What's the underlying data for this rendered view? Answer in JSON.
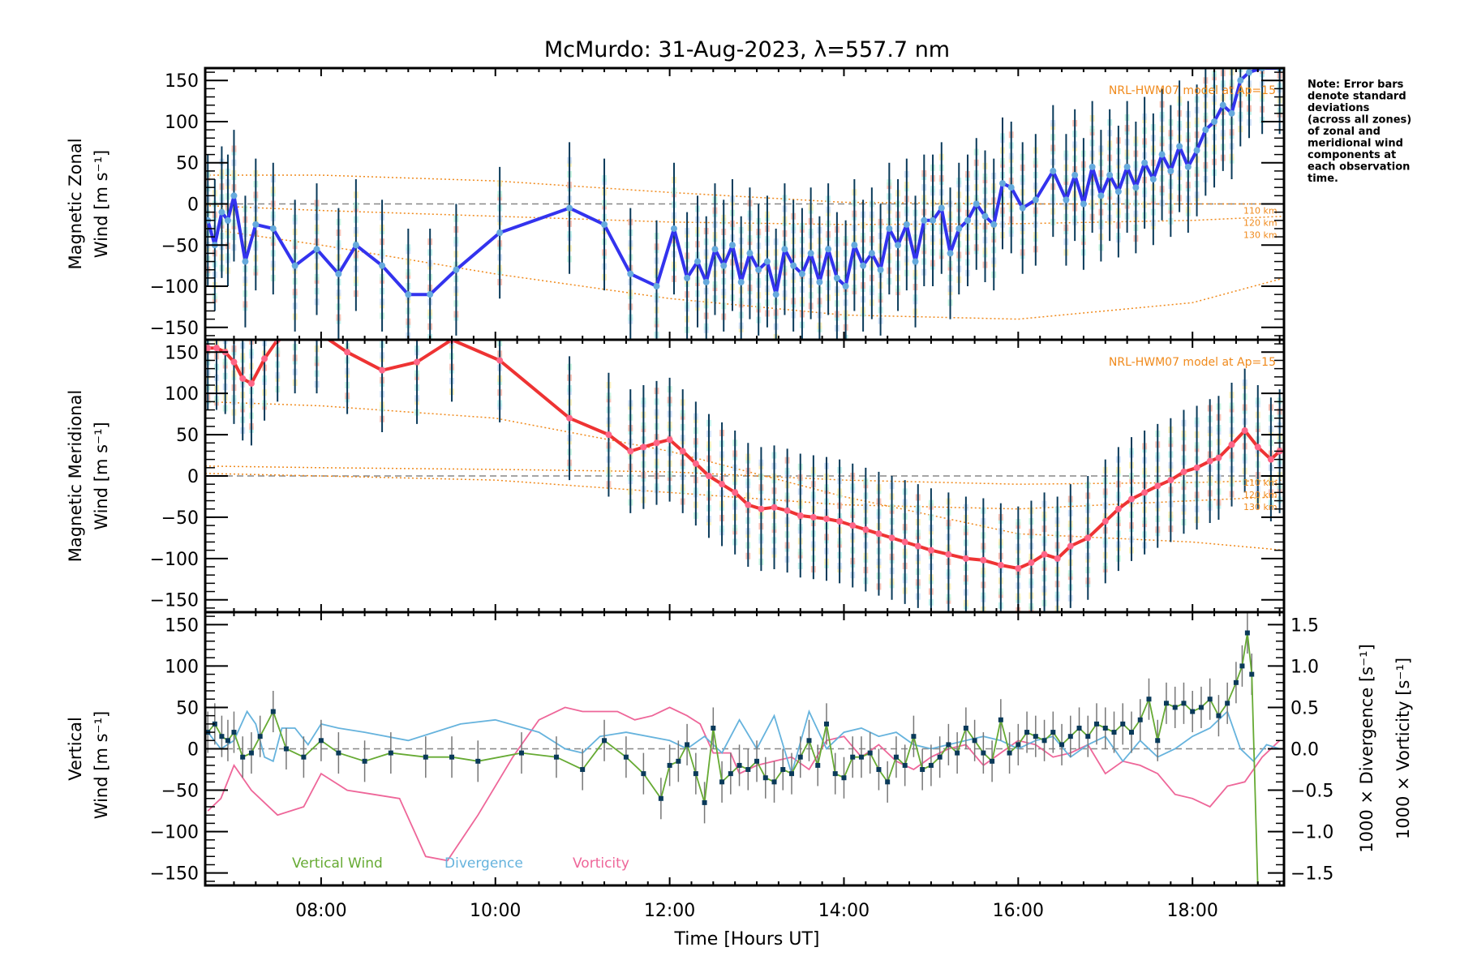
{
  "chart_data": {
    "type": "line",
    "title": "McMurdo: 31-Aug-2023, λ=557.7 nm",
    "xlabel": "Time [Hours UT]",
    "xlim": [
      6.67,
      19.05
    ],
    "xticks": [
      {
        "v": 8,
        "label": "08:00"
      },
      {
        "v": 10,
        "label": "10:00"
      },
      {
        "v": 12,
        "label": "12:00"
      },
      {
        "v": 14,
        "label": "14:00"
      },
      {
        "v": 16,
        "label": "16:00"
      },
      {
        "v": 18,
        "label": "18:00"
      }
    ],
    "note_lines": [
      "Note: Error bars",
      "denote standard",
      "deviations",
      "(across all zones)",
      "of zonal and",
      "meridional wind",
      "components at",
      "each observation",
      "time."
    ],
    "colors": {
      "zonal": "#3333ee",
      "zonal_marker": "#66aadd",
      "meridional": "#ee3333",
      "meridional_marker": "#ff6688",
      "errorbar": "#0a3a5a",
      "model": "#f08a1c",
      "vertical": "#66aa33",
      "divergence": "#66b3dd",
      "vorticity": "#ee6699",
      "zero_line": "#888888"
    },
    "panels": [
      {
        "id": "zonal",
        "ylabel_line1": "Magnetic Zonal",
        "ylabel_line2": "Wind [m s⁻¹]",
        "ylim": [
          -165,
          165
        ],
        "yticks": [
          -150,
          -100,
          -50,
          0,
          50,
          100,
          150
        ],
        "model_label": "NRL-HWM07 model at Ap=15",
        "altitude_labels": [
          "110 km",
          "120 km",
          "130 km"
        ],
        "model_curves": [
          {
            "alt": "110 km",
            "x": [
              6.67,
              8,
              10,
              12,
              14,
              16,
              18,
              19.05
            ],
            "y": [
              35,
              35,
              28,
              14,
              2,
              0,
              0,
              0
            ]
          },
          {
            "alt": "120 km",
            "x": [
              6.67,
              8,
              10,
              12,
              14,
              16,
              18,
              19.05
            ],
            "y": [
              -2,
              -8,
              -15,
              -22,
              -25,
              -24,
              -20,
              -15
            ]
          },
          {
            "alt": "130 km",
            "x": [
              6.67,
              8,
              10,
              12,
              14,
              16,
              18,
              19.05
            ],
            "y": [
              -30,
              -50,
              -85,
              -115,
              -135,
              -140,
              -120,
              -90
            ]
          }
        ],
        "series": {
          "name": "Zonal wind",
          "x": [
            6.7,
            6.78,
            6.86,
            6.93,
            7.0,
            7.13,
            7.25,
            7.45,
            7.7,
            7.95,
            8.2,
            8.4,
            8.7,
            9.0,
            9.25,
            9.55,
            10.05,
            10.85,
            11.25,
            11.55,
            11.85,
            12.05,
            12.2,
            12.32,
            12.42,
            12.52,
            12.62,
            12.72,
            12.82,
            12.92,
            13.02,
            13.12,
            13.22,
            13.32,
            13.42,
            13.52,
            13.62,
            13.72,
            13.82,
            13.92,
            14.02,
            14.12,
            14.22,
            14.32,
            14.42,
            14.52,
            14.62,
            14.72,
            14.82,
            14.92,
            15.02,
            15.12,
            15.22,
            15.32,
            15.42,
            15.52,
            15.62,
            15.72,
            15.82,
            15.92,
            16.05,
            16.2,
            16.4,
            16.55,
            16.65,
            16.75,
            16.85,
            16.95,
            17.05,
            17.15,
            17.25,
            17.35,
            17.45,
            17.55,
            17.65,
            17.75,
            17.85,
            17.95,
            18.05,
            18.15,
            18.25,
            18.35,
            18.45,
            18.55,
            18.65,
            18.8,
            19.0
          ],
          "y": [
            -20,
            -50,
            -10,
            -20,
            10,
            -70,
            -25,
            -30,
            -75,
            -55,
            -85,
            -50,
            -75,
            -110,
            -110,
            -80,
            -35,
            -5,
            -25,
            -85,
            -100,
            -30,
            -90,
            -70,
            -95,
            -55,
            -75,
            -50,
            -95,
            -60,
            -80,
            -70,
            -110,
            -55,
            -75,
            -85,
            -60,
            -95,
            -55,
            -90,
            -100,
            -50,
            -75,
            -60,
            -80,
            -30,
            -50,
            -25,
            -70,
            -20,
            -20,
            -5,
            -60,
            -30,
            -20,
            0,
            -15,
            -25,
            25,
            20,
            -5,
            5,
            40,
            5,
            35,
            0,
            45,
            10,
            35,
            15,
            45,
            20,
            50,
            30,
            60,
            40,
            70,
            45,
            65,
            90,
            100,
            120,
            110,
            150,
            160,
            165,
            165
          ],
          "error": 80
        }
      },
      {
        "id": "meridional",
        "ylabel_line1": "Magnetic Meridional",
        "ylabel_line2": "Wind [m s⁻¹]",
        "ylim": [
          -165,
          165
        ],
        "yticks": [
          -150,
          -100,
          -50,
          0,
          50,
          100,
          150
        ],
        "model_label": "NRL-HWM07 model at Ap=15",
        "altitude_labels": [
          "110 km",
          "120 km",
          "130 km"
        ],
        "model_curves": [
          {
            "alt": "110 km",
            "x": [
              6.67,
              8,
              10,
              12,
              14,
              16,
              18,
              19.05
            ],
            "y": [
              12,
              10,
              8,
              5,
              -5,
              -10,
              -8,
              -5
            ]
          },
          {
            "alt": "120 km",
            "x": [
              6.67,
              8,
              10,
              12,
              14,
              16,
              18,
              19.05
            ],
            "y": [
              3,
              0,
              -5,
              -20,
              -35,
              -40,
              -30,
              -25
            ]
          },
          {
            "alt": "130 km",
            "x": [
              6.67,
              8,
              10,
              12,
              14,
              16,
              18,
              19.05
            ],
            "y": [
              90,
              85,
              70,
              30,
              -25,
              -70,
              -80,
              -90
            ]
          }
        ],
        "series": {
          "name": "Meridional wind",
          "x": [
            6.7,
            6.8,
            6.9,
            7.0,
            7.1,
            7.2,
            7.35,
            7.5,
            7.7,
            7.95,
            8.3,
            8.7,
            9.1,
            9.5,
            10.05,
            10.85,
            11.3,
            11.55,
            11.7,
            11.85,
            12.0,
            12.15,
            12.3,
            12.45,
            12.6,
            12.75,
            12.9,
            13.05,
            13.2,
            13.35,
            13.5,
            13.65,
            13.8,
            13.95,
            14.1,
            14.25,
            14.4,
            14.55,
            14.7,
            14.85,
            15.0,
            15.2,
            15.4,
            15.6,
            15.8,
            16.0,
            16.15,
            16.3,
            16.45,
            16.6,
            16.8,
            17.0,
            17.15,
            17.3,
            17.45,
            17.6,
            17.75,
            17.9,
            18.05,
            18.2,
            18.3,
            18.45,
            18.6,
            18.75,
            18.9,
            19.0
          ],
          "y": [
            155,
            155,
            150,
            138,
            118,
            112,
            142,
            165,
            175,
            175,
            150,
            128,
            138,
            165,
            140,
            70,
            50,
            30,
            35,
            40,
            44,
            30,
            15,
            0,
            -10,
            -20,
            -35,
            -40,
            -38,
            -42,
            -48,
            -50,
            -52,
            -55,
            -60,
            -65,
            -70,
            -75,
            -80,
            -85,
            -90,
            -95,
            -100,
            -102,
            -108,
            -112,
            -105,
            -95,
            -100,
            -85,
            -75,
            -55,
            -40,
            -28,
            -20,
            -12,
            -5,
            5,
            10,
            18,
            22,
            38,
            55,
            35,
            20,
            30
          ],
          "error": 75
        }
      },
      {
        "id": "vertical",
        "ylabel_line1": "Vertical",
        "ylabel_line2": "Wind [m s⁻¹]",
        "ylim": [
          -165,
          165
        ],
        "yticks": [
          -150,
          -100,
          -50,
          0,
          50,
          100,
          150
        ],
        "y2label_divergence": "1000 × Divergence [s⁻¹]",
        "y2label_vorticity": "1000 × Vorticity [s⁻¹]",
        "y2lim": [
          -1.65,
          1.65
        ],
        "y2ticks": [
          {
            "v": -1.5,
            "label": "−1.5"
          },
          {
            "v": -1.0,
            "label": "−1.0"
          },
          {
            "v": -0.5,
            "label": "−0.5"
          },
          {
            "v": 0,
            "label": "0.0"
          },
          {
            "v": 0.5,
            "label": "0.5"
          },
          {
            "v": 1.0,
            "label": "1.0"
          },
          {
            "v": 1.5,
            "label": "1.5"
          }
        ],
        "legend": [
          {
            "label": "Vertical Wind",
            "color": "#66aa33"
          },
          {
            "label": "Divergence",
            "color": "#66b3dd"
          },
          {
            "label": "Vorticity",
            "color": "#ee6699"
          }
        ],
        "vertical_wind": {
          "x": [
            6.7,
            6.78,
            6.86,
            6.93,
            7.0,
            7.1,
            7.2,
            7.3,
            7.45,
            7.6,
            7.8,
            8.0,
            8.2,
            8.5,
            8.8,
            9.2,
            9.5,
            9.8,
            10.3,
            10.7,
            11.0,
            11.25,
            11.5,
            11.7,
            11.9,
            12.0,
            12.1,
            12.2,
            12.3,
            12.4,
            12.5,
            12.6,
            12.7,
            12.8,
            12.9,
            13.0,
            13.1,
            13.2,
            13.3,
            13.4,
            13.5,
            13.6,
            13.7,
            13.8,
            13.9,
            14.0,
            14.1,
            14.2,
            14.3,
            14.4,
            14.5,
            14.6,
            14.7,
            14.8,
            14.9,
            15.0,
            15.1,
            15.2,
            15.3,
            15.4,
            15.5,
            15.6,
            15.7,
            15.8,
            15.9,
            16.0,
            16.1,
            16.2,
            16.3,
            16.4,
            16.5,
            16.6,
            16.7,
            16.8,
            16.9,
            17.0,
            17.1,
            17.2,
            17.3,
            17.4,
            17.5,
            17.6,
            17.7,
            17.8,
            17.9,
            18.0,
            18.1,
            18.2,
            18.3,
            18.4,
            18.5,
            18.57,
            18.63,
            18.68
          ],
          "y": [
            20,
            30,
            15,
            10,
            20,
            -10,
            -5,
            15,
            45,
            0,
            -10,
            10,
            -5,
            -15,
            -5,
            -10,
            -10,
            -15,
            -5,
            -10,
            -25,
            10,
            -10,
            -30,
            -60,
            -20,
            -15,
            5,
            -30,
            -65,
            25,
            -40,
            -30,
            -20,
            -25,
            -15,
            -35,
            -40,
            -25,
            -30,
            -10,
            10,
            -20,
            30,
            -30,
            -35,
            -10,
            -10,
            -5,
            -25,
            -40,
            -10,
            -20,
            15,
            -25,
            -20,
            -10,
            5,
            -5,
            25,
            10,
            -5,
            -15,
            35,
            -5,
            5,
            20,
            15,
            10,
            20,
            5,
            15,
            25,
            15,
            30,
            25,
            20,
            30,
            20,
            35,
            60,
            10,
            55,
            50,
            55,
            45,
            50,
            60,
            40,
            55,
            80,
            100,
            140,
            90
          ],
          "error": 25
        },
        "divergence": {
          "x": [
            6.7,
            6.85,
            7.0,
            7.15,
            7.25,
            7.35,
            7.45,
            7.55,
            7.7,
            7.85,
            8.0,
            8.2,
            8.5,
            9.0,
            9.3,
            9.6,
            10.0,
            10.5,
            10.8,
            11.0,
            11.2,
            11.5,
            12.0,
            12.2,
            12.4,
            12.6,
            12.8,
            13.0,
            13.2,
            13.4,
            13.6,
            13.8,
            14.0,
            14.2,
            14.4,
            14.6,
            14.8,
            15.0,
            15.2,
            15.4,
            15.6,
            15.8,
            16.0,
            16.2,
            16.4,
            16.6,
            16.8,
            17.0,
            17.2,
            17.4,
            17.6,
            17.8,
            18.0,
            18.2,
            18.4,
            18.55,
            18.7,
            18.85,
            19.0
          ],
          "y": [
            0.2,
            0.0,
            0.1,
            0.45,
            0.3,
            -0.1,
            -0.15,
            0.25,
            0.25,
            0.05,
            0.3,
            0.25,
            0.2,
            0.1,
            0.2,
            0.3,
            0.35,
            0.2,
            0.0,
            -0.05,
            0.15,
            0.2,
            0.1,
            0.0,
            0.15,
            -0.05,
            0.35,
            0.0,
            0.4,
            -0.3,
            0.45,
            0.0,
            0.2,
            0.25,
            0.15,
            0.2,
            0.05,
            0.0,
            0.05,
            0.1,
            0.15,
            0.1,
            0.0,
            0.1,
            0.15,
            -0.1,
            0.05,
            0.15,
            -0.15,
            0.1,
            -0.1,
            0.0,
            0.15,
            0.25,
            0.45,
            0.0,
            -0.15,
            0.05,
            0.0
          ],
          "scale": "right"
        },
        "vorticity": {
          "x": [
            6.7,
            6.85,
            7.0,
            7.2,
            7.5,
            7.8,
            8.0,
            8.3,
            8.6,
            8.9,
            9.2,
            9.45,
            9.8,
            10.2,
            10.5,
            10.8,
            11.0,
            11.2,
            11.4,
            11.6,
            11.8,
            12.0,
            12.2,
            12.35,
            12.5,
            12.7,
            12.8,
            13.0,
            13.2,
            13.4,
            13.6,
            13.8,
            14.0,
            14.2,
            14.4,
            14.6,
            14.8,
            15.0,
            15.2,
            15.4,
            15.6,
            15.8,
            16.0,
            16.2,
            16.4,
            16.6,
            16.8,
            17.0,
            17.2,
            17.4,
            17.6,
            17.8,
            18.0,
            18.2,
            18.4,
            18.6,
            18.8,
            19.0
          ],
          "y": [
            -0.75,
            -0.6,
            -0.2,
            -0.5,
            -0.8,
            -0.7,
            -0.3,
            -0.5,
            -0.55,
            -0.6,
            -1.3,
            -1.35,
            -0.8,
            -0.1,
            0.35,
            0.5,
            0.45,
            0.45,
            0.45,
            0.35,
            0.4,
            0.5,
            0.4,
            0.3,
            -0.05,
            -0.05,
            -0.3,
            -0.2,
            -0.15,
            -0.1,
            -0.25,
            0.1,
            0.15,
            -0.1,
            0.05,
            -0.15,
            -0.25,
            -0.1,
            0.0,
            0.05,
            -0.2,
            -0.05,
            0.1,
            0.05,
            -0.1,
            -0.05,
            0.05,
            -0.3,
            -0.15,
            -0.2,
            -0.3,
            -0.55,
            -0.6,
            -0.7,
            -0.45,
            -0.4,
            -0.1,
            0.1
          ],
          "scale": "right"
        }
      }
    ]
  }
}
